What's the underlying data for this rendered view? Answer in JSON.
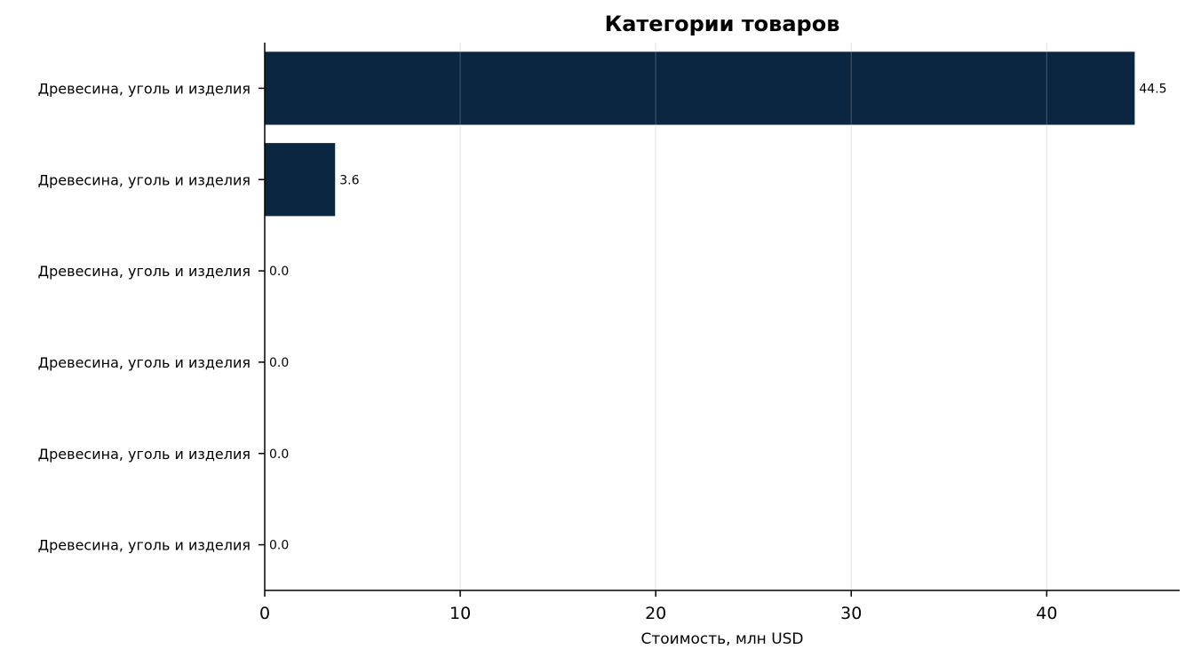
{
  "chart_data": {
    "type": "bar",
    "orientation": "horizontal",
    "title": "Категории товаров",
    "xlabel": "Стоимость, млн USD",
    "ylabel": "",
    "categories": [
      "Древесина, уголь и изделия",
      "Древесина, уголь и изделия",
      "Древесина, уголь и изделия",
      "Древесина, уголь и изделия",
      "Древесина, уголь и изделия",
      "Древесина, уголь и изделия"
    ],
    "values": [
      44.5,
      3.6,
      0.0,
      0.0,
      0.0,
      0.0
    ],
    "value_labels": [
      "44.5",
      "3.6",
      "0.0",
      "0.0",
      "0.0",
      "0.0"
    ],
    "xticks": [
      0,
      10,
      20,
      30,
      40
    ],
    "xlim": [
      0,
      46.8
    ],
    "grid": "vertical",
    "legend": "none",
    "bar_color": "#0b2641",
    "grid_color": "#e6e6e6",
    "axis_color": "#000000"
  }
}
